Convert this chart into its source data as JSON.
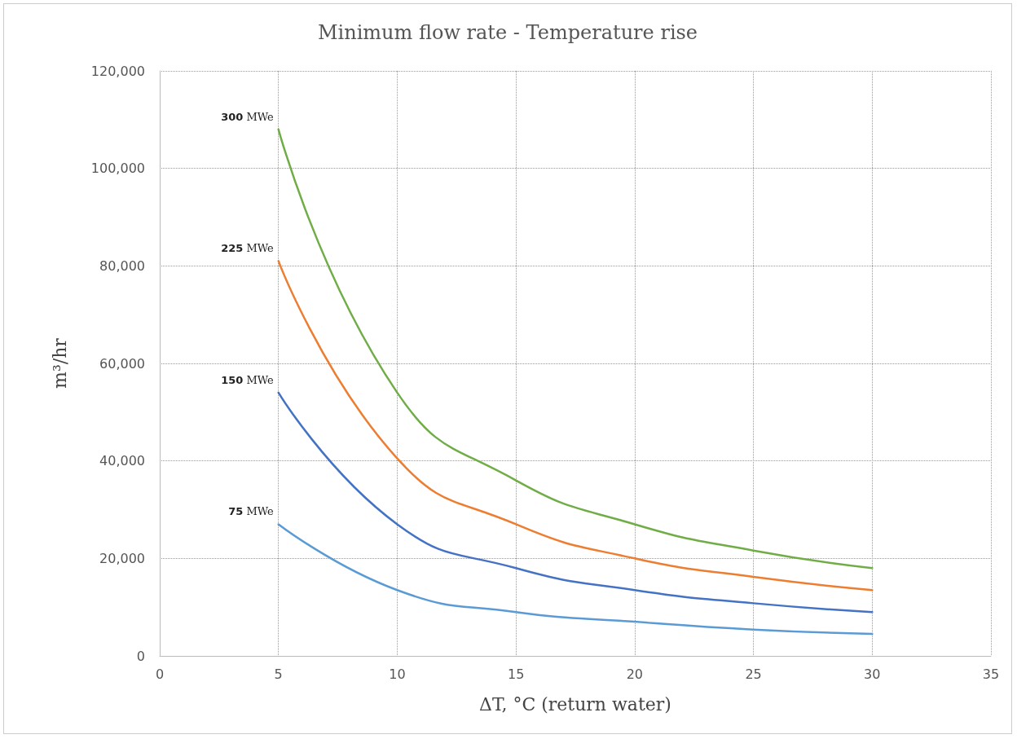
{
  "chart_data": {
    "type": "line",
    "title": "Minimum flow rate - Temperature rise",
    "xlabel": "ΔT, °C (return water)",
    "ylabel": "m³/hr",
    "x": [
      5,
      10,
      15,
      20,
      25,
      30
    ],
    "series": [
      {
        "name": "300 MWe",
        "color": "#70ad47",
        "values": [
          108000,
          54000,
          36000,
          27000,
          21600,
          18000
        ]
      },
      {
        "name": "225 MWe",
        "color": "#ed7d31",
        "values": [
          81000,
          40500,
          27000,
          20000,
          16200,
          13500
        ]
      },
      {
        "name": "150 MWe",
        "color": "#4472c4",
        "values": [
          54000,
          27000,
          18000,
          13500,
          10800,
          9000
        ]
      },
      {
        "name": "75 MWe",
        "color": "#5b9bd5",
        "values": [
          27000,
          13500,
          9000,
          7000,
          5400,
          4500
        ]
      }
    ],
    "xlim": [
      0,
      35
    ],
    "xticks": [
      0,
      5,
      10,
      15,
      20,
      25,
      30,
      35
    ],
    "ylim": [
      0,
      120000
    ],
    "yticks": [
      0,
      {
        "value": 20000,
        "label": "20,000"
      },
      {
        "value": 40000,
        "label": "40,000"
      },
      {
        "value": 60000,
        "label": "60,000"
      },
      {
        "value": 80000,
        "label": "80,000"
      },
      {
        "value": 100000,
        "label": "100,000"
      },
      {
        "value": 120000,
        "label": "120,000"
      }
    ],
    "grid": true,
    "legend": false,
    "marker": "none",
    "line_style": "solid"
  }
}
